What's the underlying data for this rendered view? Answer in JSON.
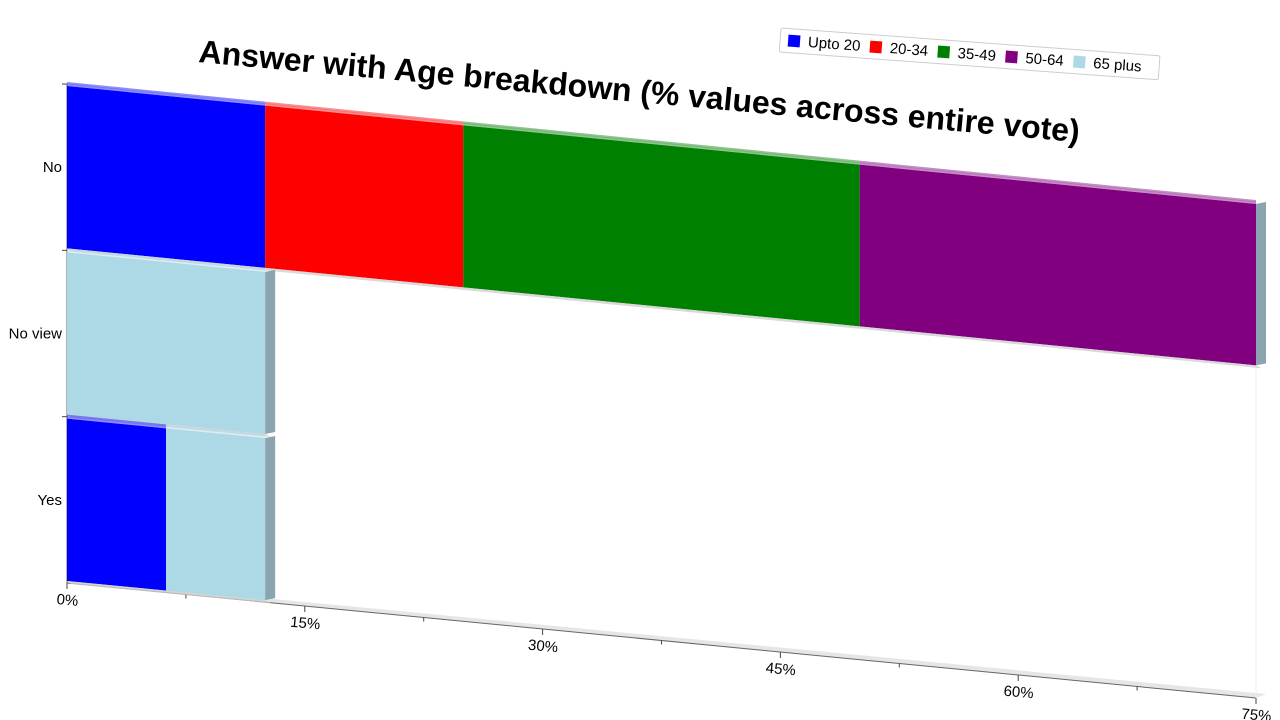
{
  "chart_data": {
    "type": "bar",
    "orientation": "horizontal",
    "stacked": true,
    "title": "Answer with Age breakdown (% values across entire vote)",
    "categories": [
      "No",
      "No view",
      "Yes"
    ],
    "x_ticks": [
      "0%",
      "15%",
      "30%",
      "45%",
      "60%",
      "75%"
    ],
    "xlim": [
      0,
      75
    ],
    "grid": false,
    "legend_position": "top-right",
    "series": [
      {
        "name": "Upto 20",
        "color": "#0000ff",
        "values": [
          12.5,
          0,
          6.25
        ]
      },
      {
        "name": "20-34",
        "color": "#ff0000",
        "values": [
          12.5,
          0,
          0
        ]
      },
      {
        "name": "35-49",
        "color": "#008000",
        "values": [
          25,
          0,
          0
        ]
      },
      {
        "name": "50-64",
        "color": "#800080",
        "values": [
          25,
          0,
          0
        ]
      },
      {
        "name": "65 plus",
        "color": "#add8e6",
        "values": [
          0,
          12.5,
          6.25
        ]
      }
    ]
  }
}
